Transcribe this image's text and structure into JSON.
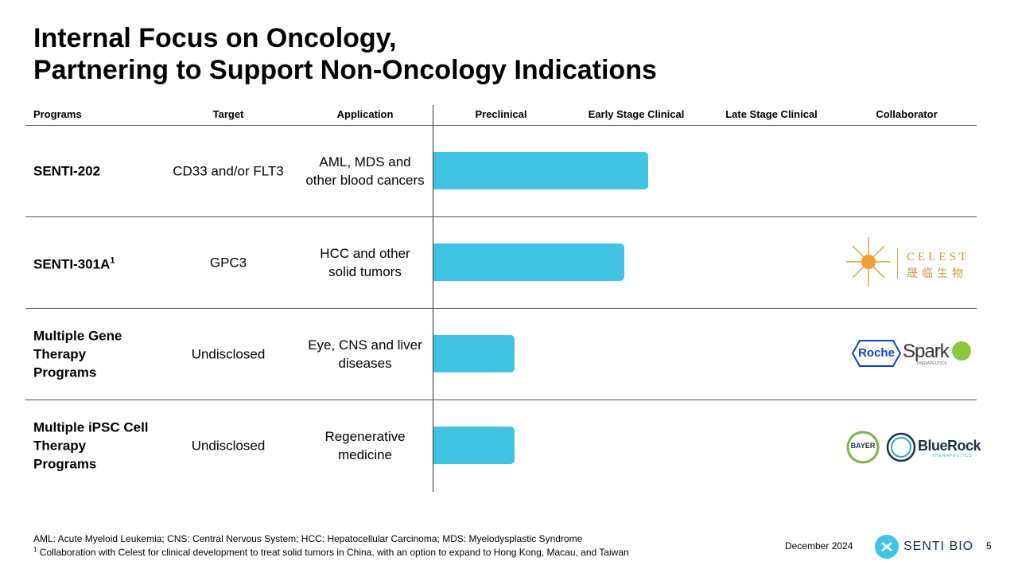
{
  "header": {
    "title_lines": [
      "Internal Focus on Oncology,",
      "Partnering to Support Non-Oncology Indications"
    ]
  },
  "table": {
    "columns": [
      "Programs",
      "Target",
      "Application",
      "Preclinical",
      "Early Stage Clinical",
      "Late Stage Clinical",
      "Collaborator"
    ],
    "stage_scale": [
      0,
      3
    ],
    "rows": [
      {
        "program": "SENTI-202",
        "target": "CD33 and/or FLT3",
        "application": "AML, MDS and other blood cancers",
        "progress": 1.59,
        "collaborator": []
      },
      {
        "program": "SENTI-301A",
        "superscript": "1",
        "target": "GPC3",
        "application": "HCC and other solid tumors",
        "progress": 1.41,
        "collaborator": [
          "CELEST",
          "晟临生物"
        ]
      },
      {
        "program": "Multiple Gene Therapy Programs",
        "target": "Undisclosed",
        "application": "Eye, CNS and liver diseases",
        "progress": 0.6,
        "collaborator": [
          "Roche",
          "Spark",
          "THERAPEUTICS"
        ]
      },
      {
        "program": "Multiple iPSC Cell Therapy Programs",
        "target": "Undisclosed",
        "application": "Regenerative medicine",
        "progress": 0.6,
        "collaborator": [
          "BAYER",
          "BlueRock",
          "THERAPEUTICS"
        ]
      }
    ]
  },
  "footer": {
    "notes": [
      "AML: Acute Myeloid Leukemia; CNS: Central Nervous System; HCC: Hepatocellular Carcinoma; MDS: Myelodysplastic Syndrome",
      {
        "marker": "1",
        "text": "Collaboration with Celest for clinical development to treat solid tumors in China, with an option to expand to Hong Kong, Macau, and Taiwan"
      }
    ],
    "date": "December 2024",
    "brand": "SENTI BIO",
    "page": "5"
  }
}
